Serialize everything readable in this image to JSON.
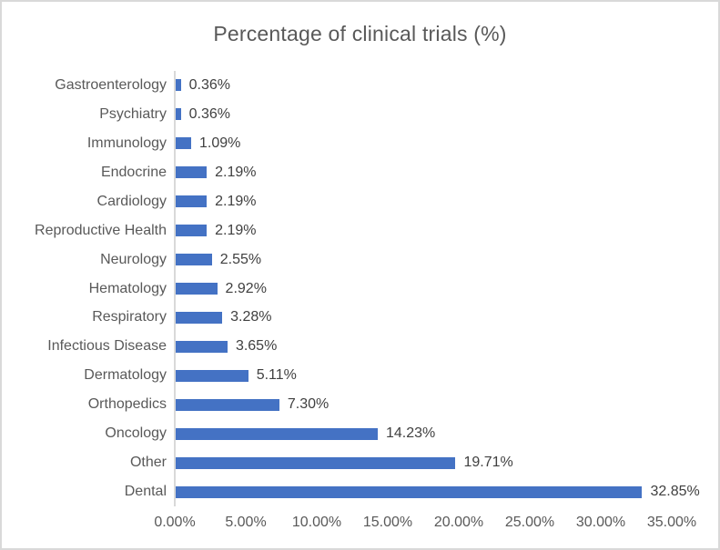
{
  "window": {
    "background_color": "#FFFFFF",
    "border_color": "#D9D9D9"
  },
  "chart_data": {
    "type": "bar",
    "orientation": "horizontal",
    "title": "Percentage of clinical trials (%)",
    "categories": [
      "Gastroenterology",
      "Psychiatry",
      "Immunology",
      "Endocrine",
      "Cardiology",
      "Reproductive Health",
      "Neurology",
      "Hematology",
      "Respiratory",
      "Infectious Disease",
      "Dermatology",
      "Orthopedics",
      "Oncology",
      "Other",
      "Dental"
    ],
    "values": [
      0.36,
      0.36,
      1.09,
      2.19,
      2.19,
      2.19,
      2.55,
      2.92,
      3.28,
      3.65,
      5.11,
      7.3,
      14.23,
      19.71,
      32.85
    ],
    "data_labels": [
      "0.36%",
      "0.36%",
      "1.09%",
      "2.19%",
      "2.19%",
      "2.19%",
      "2.55%",
      "2.92%",
      "3.28%",
      "3.65%",
      "5.11%",
      "7.30%",
      "14.23%",
      "19.71%",
      "32.85%"
    ],
    "x_tick_labels": [
      "0.00%",
      "5.00%",
      "10.00%",
      "15.00%",
      "20.00%",
      "25.00%",
      "30.00%",
      "35.00%"
    ],
    "xlim": [
      0,
      35
    ],
    "x_tick_step": 5,
    "grid": false,
    "legend": false,
    "bar_color": "#4472C4",
    "title_color": "#595959",
    "category_label_color": "#595959",
    "data_label_color": "#404040",
    "tick_label_color": "#595959",
    "axis_line_color": "#D9D9D9"
  }
}
